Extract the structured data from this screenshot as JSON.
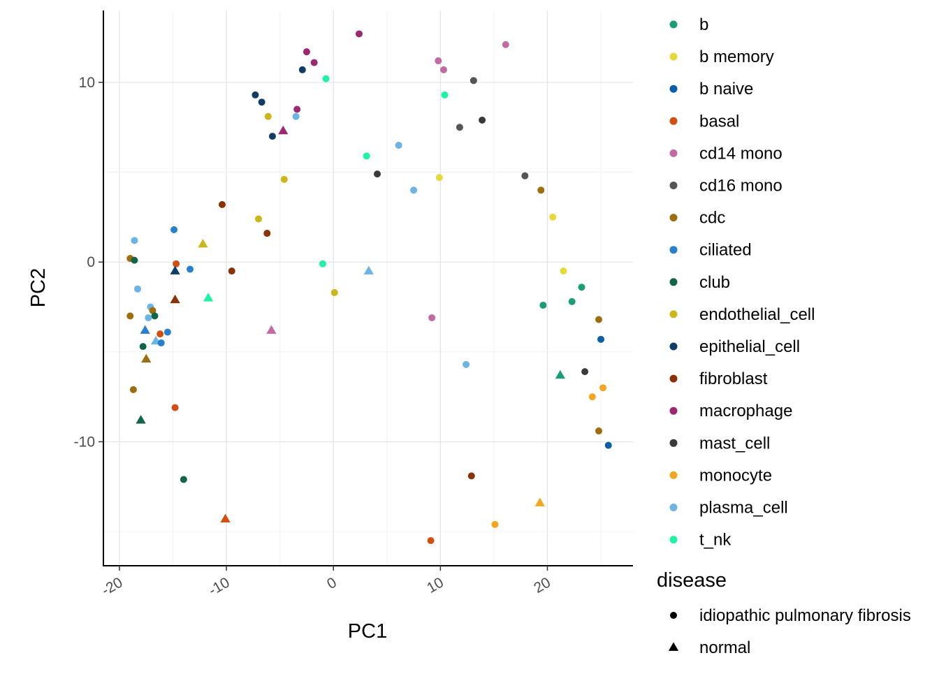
{
  "chart_data": {
    "type": "scatter",
    "xlabel": "PC1",
    "ylabel": "PC2",
    "xlim": [
      -21.5,
      28
    ],
    "ylim": [
      -16.9,
      14.0
    ],
    "grid": true,
    "x_ticks": [
      -20,
      -10,
      0,
      10,
      20
    ],
    "x_tick_labels": [
      "-20",
      "-10",
      "0",
      "10",
      "20"
    ],
    "y_ticks": [
      -10,
      0,
      10
    ],
    "y_tick_labels": [
      "-10",
      "0",
      "10"
    ],
    "legend_placement": "right",
    "color_legend": [
      {
        "label": "b",
        "color": "#1B9E77"
      },
      {
        "label": "b memory",
        "color": "#E6D93A"
      },
      {
        "label": "b naive",
        "color": "#0A5FA8"
      },
      {
        "label": "basal",
        "color": "#D1500F"
      },
      {
        "label": "cd14 mono",
        "color": "#C26AA6"
      },
      {
        "label": "cd16 mono",
        "color": "#555555"
      },
      {
        "label": "cdc",
        "color": "#9E6D0E"
      },
      {
        "label": "ciliated",
        "color": "#2680CC"
      },
      {
        "label": "club",
        "color": "#11664A"
      },
      {
        "label": "endothelial_cell",
        "color": "#CDB51C"
      },
      {
        "label": "epithelial_cell",
        "color": "#0F3D66"
      },
      {
        "label": "fibroblast",
        "color": "#8A3306"
      },
      {
        "label": "macrophage",
        "color": "#9B2870"
      },
      {
        "label": "mast_cell",
        "color": "#3A3A3A"
      },
      {
        "label": "monocyte",
        "color": "#F4A623"
      },
      {
        "label": "plasma_cell",
        "color": "#6CB4E4"
      },
      {
        "label": "t_nk",
        "color": "#1EF2A4"
      }
    ],
    "shape_legend": {
      "title": "disease",
      "items": [
        {
          "label": "idiopathic pulmonary fibrosis",
          "shape": "circle"
        },
        {
          "label": "normal",
          "shape": "triangle"
        }
      ]
    },
    "points": [
      {
        "x": 2.4,
        "y": 12.7,
        "cell": "macrophage",
        "disease": "idiopathic pulmonary fibrosis"
      },
      {
        "x": 16.1,
        "y": 12.1,
        "cell": "cd14 mono",
        "disease": "idiopathic pulmonary fibrosis"
      },
      {
        "x": -2.5,
        "y": 11.7,
        "cell": "macrophage",
        "disease": "idiopathic pulmonary fibrosis"
      },
      {
        "x": -1.8,
        "y": 11.1,
        "cell": "macrophage",
        "disease": "idiopathic pulmonary fibrosis"
      },
      {
        "x": -2.9,
        "y": 10.7,
        "cell": "epithelial_cell",
        "disease": "idiopathic pulmonary fibrosis"
      },
      {
        "x": 9.8,
        "y": 11.2,
        "cell": "cd14 mono",
        "disease": "idiopathic pulmonary fibrosis"
      },
      {
        "x": 10.3,
        "y": 10.7,
        "cell": "cd14 mono",
        "disease": "idiopathic pulmonary fibrosis"
      },
      {
        "x": 13.1,
        "y": 10.1,
        "cell": "cd16 mono",
        "disease": "idiopathic pulmonary fibrosis"
      },
      {
        "x": -0.7,
        "y": 10.2,
        "cell": "t_nk",
        "disease": "idiopathic pulmonary fibrosis"
      },
      {
        "x": 10.4,
        "y": 9.3,
        "cell": "t_nk",
        "disease": "idiopathic pulmonary fibrosis"
      },
      {
        "x": -7.3,
        "y": 9.3,
        "cell": "epithelial_cell",
        "disease": "idiopathic pulmonary fibrosis"
      },
      {
        "x": -6.7,
        "y": 8.9,
        "cell": "epithelial_cell",
        "disease": "idiopathic pulmonary fibrosis"
      },
      {
        "x": -3.4,
        "y": 8.5,
        "cell": "macrophage",
        "disease": "idiopathic pulmonary fibrosis"
      },
      {
        "x": -3.5,
        "y": 8.1,
        "cell": "plasma_cell",
        "disease": "idiopathic pulmonary fibrosis"
      },
      {
        "x": -6.1,
        "y": 8.1,
        "cell": "endothelial_cell",
        "disease": "idiopathic pulmonary fibrosis"
      },
      {
        "x": -4.7,
        "y": 7.3,
        "cell": "macrophage",
        "disease": "normal"
      },
      {
        "x": -5.7,
        "y": 7.0,
        "cell": "epithelial_cell",
        "disease": "idiopathic pulmonary fibrosis"
      },
      {
        "x": 11.8,
        "y": 7.5,
        "cell": "cd16 mono",
        "disease": "idiopathic pulmonary fibrosis"
      },
      {
        "x": 13.9,
        "y": 7.9,
        "cell": "mast_cell",
        "disease": "idiopathic pulmonary fibrosis"
      },
      {
        "x": 6.1,
        "y": 6.5,
        "cell": "plasma_cell",
        "disease": "idiopathic pulmonary fibrosis"
      },
      {
        "x": 3.1,
        "y": 5.9,
        "cell": "t_nk",
        "disease": "idiopathic pulmonary fibrosis"
      },
      {
        "x": 4.1,
        "y": 4.9,
        "cell": "mast_cell",
        "disease": "idiopathic pulmonary fibrosis"
      },
      {
        "x": 9.9,
        "y": 4.7,
        "cell": "b memory",
        "disease": "idiopathic pulmonary fibrosis"
      },
      {
        "x": 17.9,
        "y": 4.8,
        "cell": "cd16 mono",
        "disease": "idiopathic pulmonary fibrosis"
      },
      {
        "x": -4.6,
        "y": 4.6,
        "cell": "endothelial_cell",
        "disease": "idiopathic pulmonary fibrosis"
      },
      {
        "x": 7.5,
        "y": 4.0,
        "cell": "plasma_cell",
        "disease": "idiopathic pulmonary fibrosis"
      },
      {
        "x": 19.4,
        "y": 4.0,
        "cell": "cdc",
        "disease": "idiopathic pulmonary fibrosis"
      },
      {
        "x": -10.4,
        "y": 3.2,
        "cell": "fibroblast",
        "disease": "idiopathic pulmonary fibrosis"
      },
      {
        "x": 20.5,
        "y": 2.5,
        "cell": "b memory",
        "disease": "idiopathic pulmonary fibrosis"
      },
      {
        "x": -7.0,
        "y": 2.4,
        "cell": "endothelial_cell",
        "disease": "idiopathic pulmonary fibrosis"
      },
      {
        "x": -6.2,
        "y": 1.6,
        "cell": "fibroblast",
        "disease": "idiopathic pulmonary fibrosis"
      },
      {
        "x": -14.9,
        "y": 1.8,
        "cell": "ciliated",
        "disease": "idiopathic pulmonary fibrosis"
      },
      {
        "x": -18.6,
        "y": 1.2,
        "cell": "plasma_cell",
        "disease": "idiopathic pulmonary fibrosis"
      },
      {
        "x": -12.2,
        "y": 1.0,
        "cell": "endothelial_cell",
        "disease": "normal"
      },
      {
        "x": -19.0,
        "y": 0.2,
        "cell": "cdc",
        "disease": "idiopathic pulmonary fibrosis"
      },
      {
        "x": -18.6,
        "y": 0.1,
        "cell": "club",
        "disease": "idiopathic pulmonary fibrosis"
      },
      {
        "x": -14.7,
        "y": -0.1,
        "cell": "basal",
        "disease": "idiopathic pulmonary fibrosis"
      },
      {
        "x": -13.4,
        "y": -0.4,
        "cell": "ciliated",
        "disease": "idiopathic pulmonary fibrosis"
      },
      {
        "x": -14.8,
        "y": -0.5,
        "cell": "epithelial_cell",
        "disease": "normal"
      },
      {
        "x": -9.5,
        "y": -0.5,
        "cell": "fibroblast",
        "disease": "idiopathic pulmonary fibrosis"
      },
      {
        "x": -1.0,
        "y": -0.1,
        "cell": "t_nk",
        "disease": "idiopathic pulmonary fibrosis"
      },
      {
        "x": 3.3,
        "y": -0.5,
        "cell": "plasma_cell",
        "disease": "normal"
      },
      {
        "x": 21.5,
        "y": -0.5,
        "cell": "b memory",
        "disease": "idiopathic pulmonary fibrosis"
      },
      {
        "x": -18.3,
        "y": -1.5,
        "cell": "plasma_cell",
        "disease": "idiopathic pulmonary fibrosis"
      },
      {
        "x": 0.1,
        "y": -1.7,
        "cell": "endothelial_cell",
        "disease": "idiopathic pulmonary fibrosis"
      },
      {
        "x": 23.2,
        "y": -1.4,
        "cell": "b",
        "disease": "idiopathic pulmonary fibrosis"
      },
      {
        "x": -14.8,
        "y": -2.1,
        "cell": "fibroblast",
        "disease": "normal"
      },
      {
        "x": -11.7,
        "y": -2.0,
        "cell": "t_nk",
        "disease": "normal"
      },
      {
        "x": 22.3,
        "y": -2.2,
        "cell": "b",
        "disease": "idiopathic pulmonary fibrosis"
      },
      {
        "x": 19.6,
        "y": -2.4,
        "cell": "b",
        "disease": "idiopathic pulmonary fibrosis"
      },
      {
        "x": -17.1,
        "y": -2.5,
        "cell": "plasma_cell",
        "disease": "idiopathic pulmonary fibrosis"
      },
      {
        "x": -16.9,
        "y": -2.7,
        "cell": "cdc",
        "disease": "idiopathic pulmonary fibrosis"
      },
      {
        "x": -19.0,
        "y": -3.0,
        "cell": "cdc",
        "disease": "idiopathic pulmonary fibrosis"
      },
      {
        "x": -16.7,
        "y": -3.0,
        "cell": "club",
        "disease": "idiopathic pulmonary fibrosis"
      },
      {
        "x": -17.3,
        "y": -3.1,
        "cell": "plasma_cell",
        "disease": "idiopathic pulmonary fibrosis"
      },
      {
        "x": 9.2,
        "y": -3.1,
        "cell": "cd14 mono",
        "disease": "idiopathic pulmonary fibrosis"
      },
      {
        "x": 24.8,
        "y": -3.2,
        "cell": "cdc",
        "disease": "idiopathic pulmonary fibrosis"
      },
      {
        "x": -17.6,
        "y": -3.8,
        "cell": "ciliated",
        "disease": "normal"
      },
      {
        "x": -5.8,
        "y": -3.8,
        "cell": "cd14 mono",
        "disease": "normal"
      },
      {
        "x": -15.5,
        "y": -3.9,
        "cell": "ciliated",
        "disease": "idiopathic pulmonary fibrosis"
      },
      {
        "x": -16.2,
        "y": -4.0,
        "cell": "basal",
        "disease": "idiopathic pulmonary fibrosis"
      },
      {
        "x": 25.0,
        "y": -4.3,
        "cell": "b naive",
        "disease": "idiopathic pulmonary fibrosis"
      },
      {
        "x": -16.6,
        "y": -4.4,
        "cell": "plasma_cell",
        "disease": "normal"
      },
      {
        "x": -16.1,
        "y": -4.5,
        "cell": "ciliated",
        "disease": "idiopathic pulmonary fibrosis"
      },
      {
        "x": -17.8,
        "y": -4.7,
        "cell": "club",
        "disease": "idiopathic pulmonary fibrosis"
      },
      {
        "x": -17.5,
        "y": -5.4,
        "cell": "cdc",
        "disease": "normal"
      },
      {
        "x": 12.4,
        "y": -5.7,
        "cell": "plasma_cell",
        "disease": "idiopathic pulmonary fibrosis"
      },
      {
        "x": 21.2,
        "y": -6.3,
        "cell": "b",
        "disease": "normal"
      },
      {
        "x": 23.5,
        "y": -6.1,
        "cell": "mast_cell",
        "disease": "idiopathic pulmonary fibrosis"
      },
      {
        "x": 25.2,
        "y": -7.0,
        "cell": "monocyte",
        "disease": "idiopathic pulmonary fibrosis"
      },
      {
        "x": -18.7,
        "y": -7.1,
        "cell": "cdc",
        "disease": "idiopathic pulmonary fibrosis"
      },
      {
        "x": 24.2,
        "y": -7.5,
        "cell": "monocyte",
        "disease": "idiopathic pulmonary fibrosis"
      },
      {
        "x": -14.8,
        "y": -8.1,
        "cell": "basal",
        "disease": "idiopathic pulmonary fibrosis"
      },
      {
        "x": -18.0,
        "y": -8.8,
        "cell": "club",
        "disease": "normal"
      },
      {
        "x": 24.8,
        "y": -9.4,
        "cell": "cdc",
        "disease": "idiopathic pulmonary fibrosis"
      },
      {
        "x": 25.7,
        "y": -10.2,
        "cell": "b naive",
        "disease": "idiopathic pulmonary fibrosis"
      },
      {
        "x": 12.9,
        "y": -11.9,
        "cell": "fibroblast",
        "disease": "idiopathic pulmonary fibrosis"
      },
      {
        "x": -14.0,
        "y": -12.1,
        "cell": "club",
        "disease": "idiopathic pulmonary fibrosis"
      },
      {
        "x": 19.3,
        "y": -13.4,
        "cell": "monocyte",
        "disease": "normal"
      },
      {
        "x": -10.1,
        "y": -14.3,
        "cell": "basal",
        "disease": "normal"
      },
      {
        "x": 15.1,
        "y": -14.6,
        "cell": "monocyte",
        "disease": "idiopathic pulmonary fibrosis"
      },
      {
        "x": 9.1,
        "y": -15.5,
        "cell": "basal",
        "disease": "idiopathic pulmonary fibrosis"
      }
    ]
  }
}
